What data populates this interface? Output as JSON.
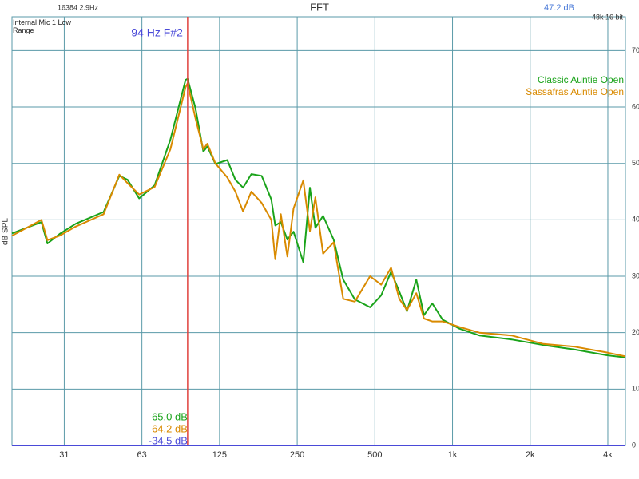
{
  "chart_data": {
    "type": "line",
    "title": "FFT",
    "device": "Internal Mic 1 Low Range",
    "fft_info": "16384  2.9Hz",
    "level": "47.2 dB",
    "format": "48k 16 bit",
    "y_label": "dB SPL",
    "cursor": {
      "value": 94,
      "label": "94 Hz F#2",
      "color": "#e0413c"
    },
    "readouts": [
      {
        "label": "65.0 dB",
        "color": "#1aa31a"
      },
      {
        "label": "64.2 dB",
        "color": "#d98a00"
      },
      {
        "label": "-34.5 dB",
        "color": "#4a4ad8"
      }
    ],
    "x_scale": "log",
    "xlim": [
      19.6,
      4680
    ],
    "ylim": [
      0,
      76
    ],
    "xticks": [
      {
        "value": 31.25,
        "label": "31"
      },
      {
        "value": 62.5,
        "label": "63"
      },
      125,
      250,
      500,
      {
        "value": 1000,
        "label": "1k"
      },
      {
        "value": 2000,
        "label": "2k"
      },
      {
        "value": 4000,
        "label": "4k"
      }
    ],
    "yticks": [
      0,
      10,
      20,
      30,
      40,
      50,
      60,
      70
    ],
    "grid": true,
    "legend": "top-right",
    "x": [
      19.6,
      25.5,
      26.9,
      30,
      34.6,
      44.4,
      51.1,
      55,
      61,
      70,
      80.6,
      92.3,
      94,
      100.8,
      108.2,
      112.1,
      120.5,
      134,
      144,
      154.2,
      166,
      182,
      198.5,
      205.5,
      216,
      229,
      242,
      264,
      280,
      294,
      315,
      346,
      377,
      418,
      479,
      529,
      578,
      622,
      666,
      724,
      775,
      834,
      915,
      1064,
      1271,
      1695,
      2250,
      2981,
      3950,
      4680
    ],
    "series": [
      {
        "name": "Classic Auntie Open",
        "color": "#1aa31a",
        "values": [
          37.6,
          39.6,
          35.8,
          37.5,
          39.3,
          41.4,
          47.8,
          47.1,
          43.8,
          46.1,
          54.2,
          64.8,
          65.0,
          59.8,
          52.1,
          53.0,
          49.9,
          50.6,
          47.1,
          45.7,
          48.1,
          47.8,
          43.6,
          39.0,
          39.6,
          36.5,
          37.9,
          32.5,
          45.7,
          38.6,
          40.7,
          36.5,
          29.4,
          25.9,
          24.5,
          26.6,
          30.8,
          27.3,
          23.8,
          29.4,
          23.1,
          25.2,
          22.3,
          20.7,
          19.5,
          18.8,
          17.8,
          17.0,
          16.0,
          15.6
        ]
      },
      {
        "name": "Sassafras Auntie Open",
        "color": "#d98a00",
        "values": [
          37.2,
          40.0,
          36.4,
          37.2,
          38.8,
          41.0,
          48.0,
          46.5,
          44.5,
          45.8,
          52.5,
          63.5,
          64.2,
          58.0,
          52.5,
          53.5,
          50.0,
          47.5,
          45.0,
          41.5,
          45.0,
          43.0,
          40.0,
          33.0,
          41.0,
          33.5,
          42.0,
          47.0,
          38.0,
          44.0,
          34.0,
          36.0,
          26.0,
          25.5,
          30.0,
          28.5,
          31.5,
          26.0,
          24.0,
          27.0,
          22.5,
          22.0,
          22.0,
          21.0,
          20.0,
          19.5,
          18.0,
          17.5,
          16.5,
          15.8
        ]
      }
    ]
  }
}
